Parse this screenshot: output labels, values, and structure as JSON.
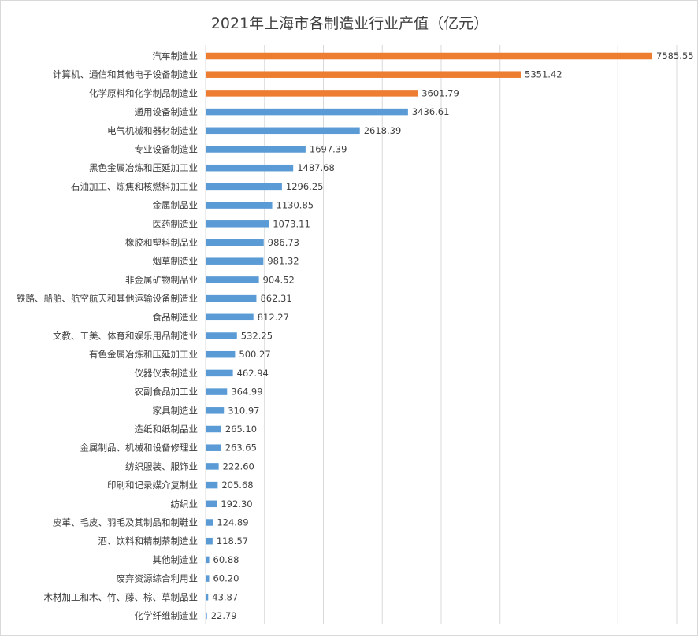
{
  "chart_data": {
    "type": "bar",
    "orientation": "horizontal",
    "title": "2021年上海市各制造业行业产值（亿元）",
    "xlim": [
      0,
      8000
    ],
    "grid": true,
    "highlight_color": "#ed7d31",
    "base_color": "#5b9bd5",
    "highlight_top_n": 3,
    "categories": [
      "汽车制造业",
      "计算机、通信和其他电子设备制造业",
      "化学原料和化学制品制造业",
      "通用设备制造业",
      "电气机械和器材制造业",
      "专业设备制造业",
      "黑色金属冶炼和压延加工业",
      "石油加工、炼焦和核燃料加工业",
      "金属制品业",
      "医药制造业",
      "橡胶和塑料制品业",
      "烟草制造业",
      "非金属矿物制品业",
      "铁路、船舶、航空航天和其他运输设备制造业",
      "食品制造业",
      "文教、工美、体育和娱乐用品制造业",
      "有色金属冶炼和压延加工业",
      "仪器仪表制造业",
      "农副食品加工业",
      "家具制造业",
      "造纸和纸制品业",
      "金属制品、机械和设备修理业",
      "纺织服装、服饰业",
      "印刷和记录媒介复制业",
      "纺织业",
      "皮革、毛皮、羽毛及其制品和制鞋业",
      "酒、饮料和精制茶制造业",
      "其他制造业",
      "废弃资源综合利用业",
      "木材加工和木、竹、藤、棕、草制品业",
      "化学纤维制造业"
    ],
    "values": [
      7585.55,
      5351.42,
      3601.79,
      3436.61,
      2618.39,
      1697.39,
      1487.68,
      1296.25,
      1130.85,
      1073.11,
      986.73,
      981.32,
      904.52,
      862.31,
      812.27,
      532.25,
      500.27,
      462.94,
      364.99,
      310.97,
      265.1,
      263.65,
      222.6,
      205.68,
      192.3,
      124.89,
      118.57,
      60.88,
      60.2,
      43.87,
      22.79
    ],
    "value_labels": [
      "7585.55",
      "5351.42",
      "3601.79",
      "3436.61",
      "2618.39",
      "1697.39",
      "1487.68",
      "1296.25",
      "1130.85",
      "1073.11",
      "986.73",
      "981.32",
      "904.52",
      "862.31",
      "812.27",
      "532.25",
      "500.27",
      "462.94",
      "364.99",
      "310.97",
      "265.10",
      "263.65",
      "222.60",
      "205.68",
      "192.30",
      "124.89",
      "118.57",
      "60.88",
      "60.20",
      "43.87",
      "22.79"
    ]
  }
}
